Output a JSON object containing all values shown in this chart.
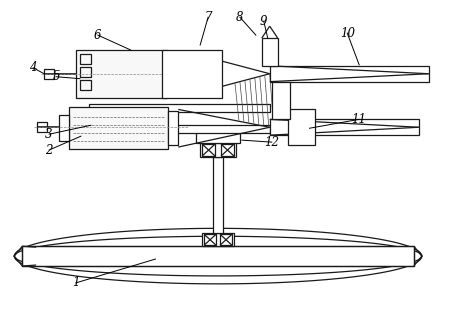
{
  "bg_color": "#ffffff",
  "line_color": "#1a1a1a",
  "lw": 0.9,
  "figsize": [
    4.5,
    3.12
  ],
  "dpi": 100
}
